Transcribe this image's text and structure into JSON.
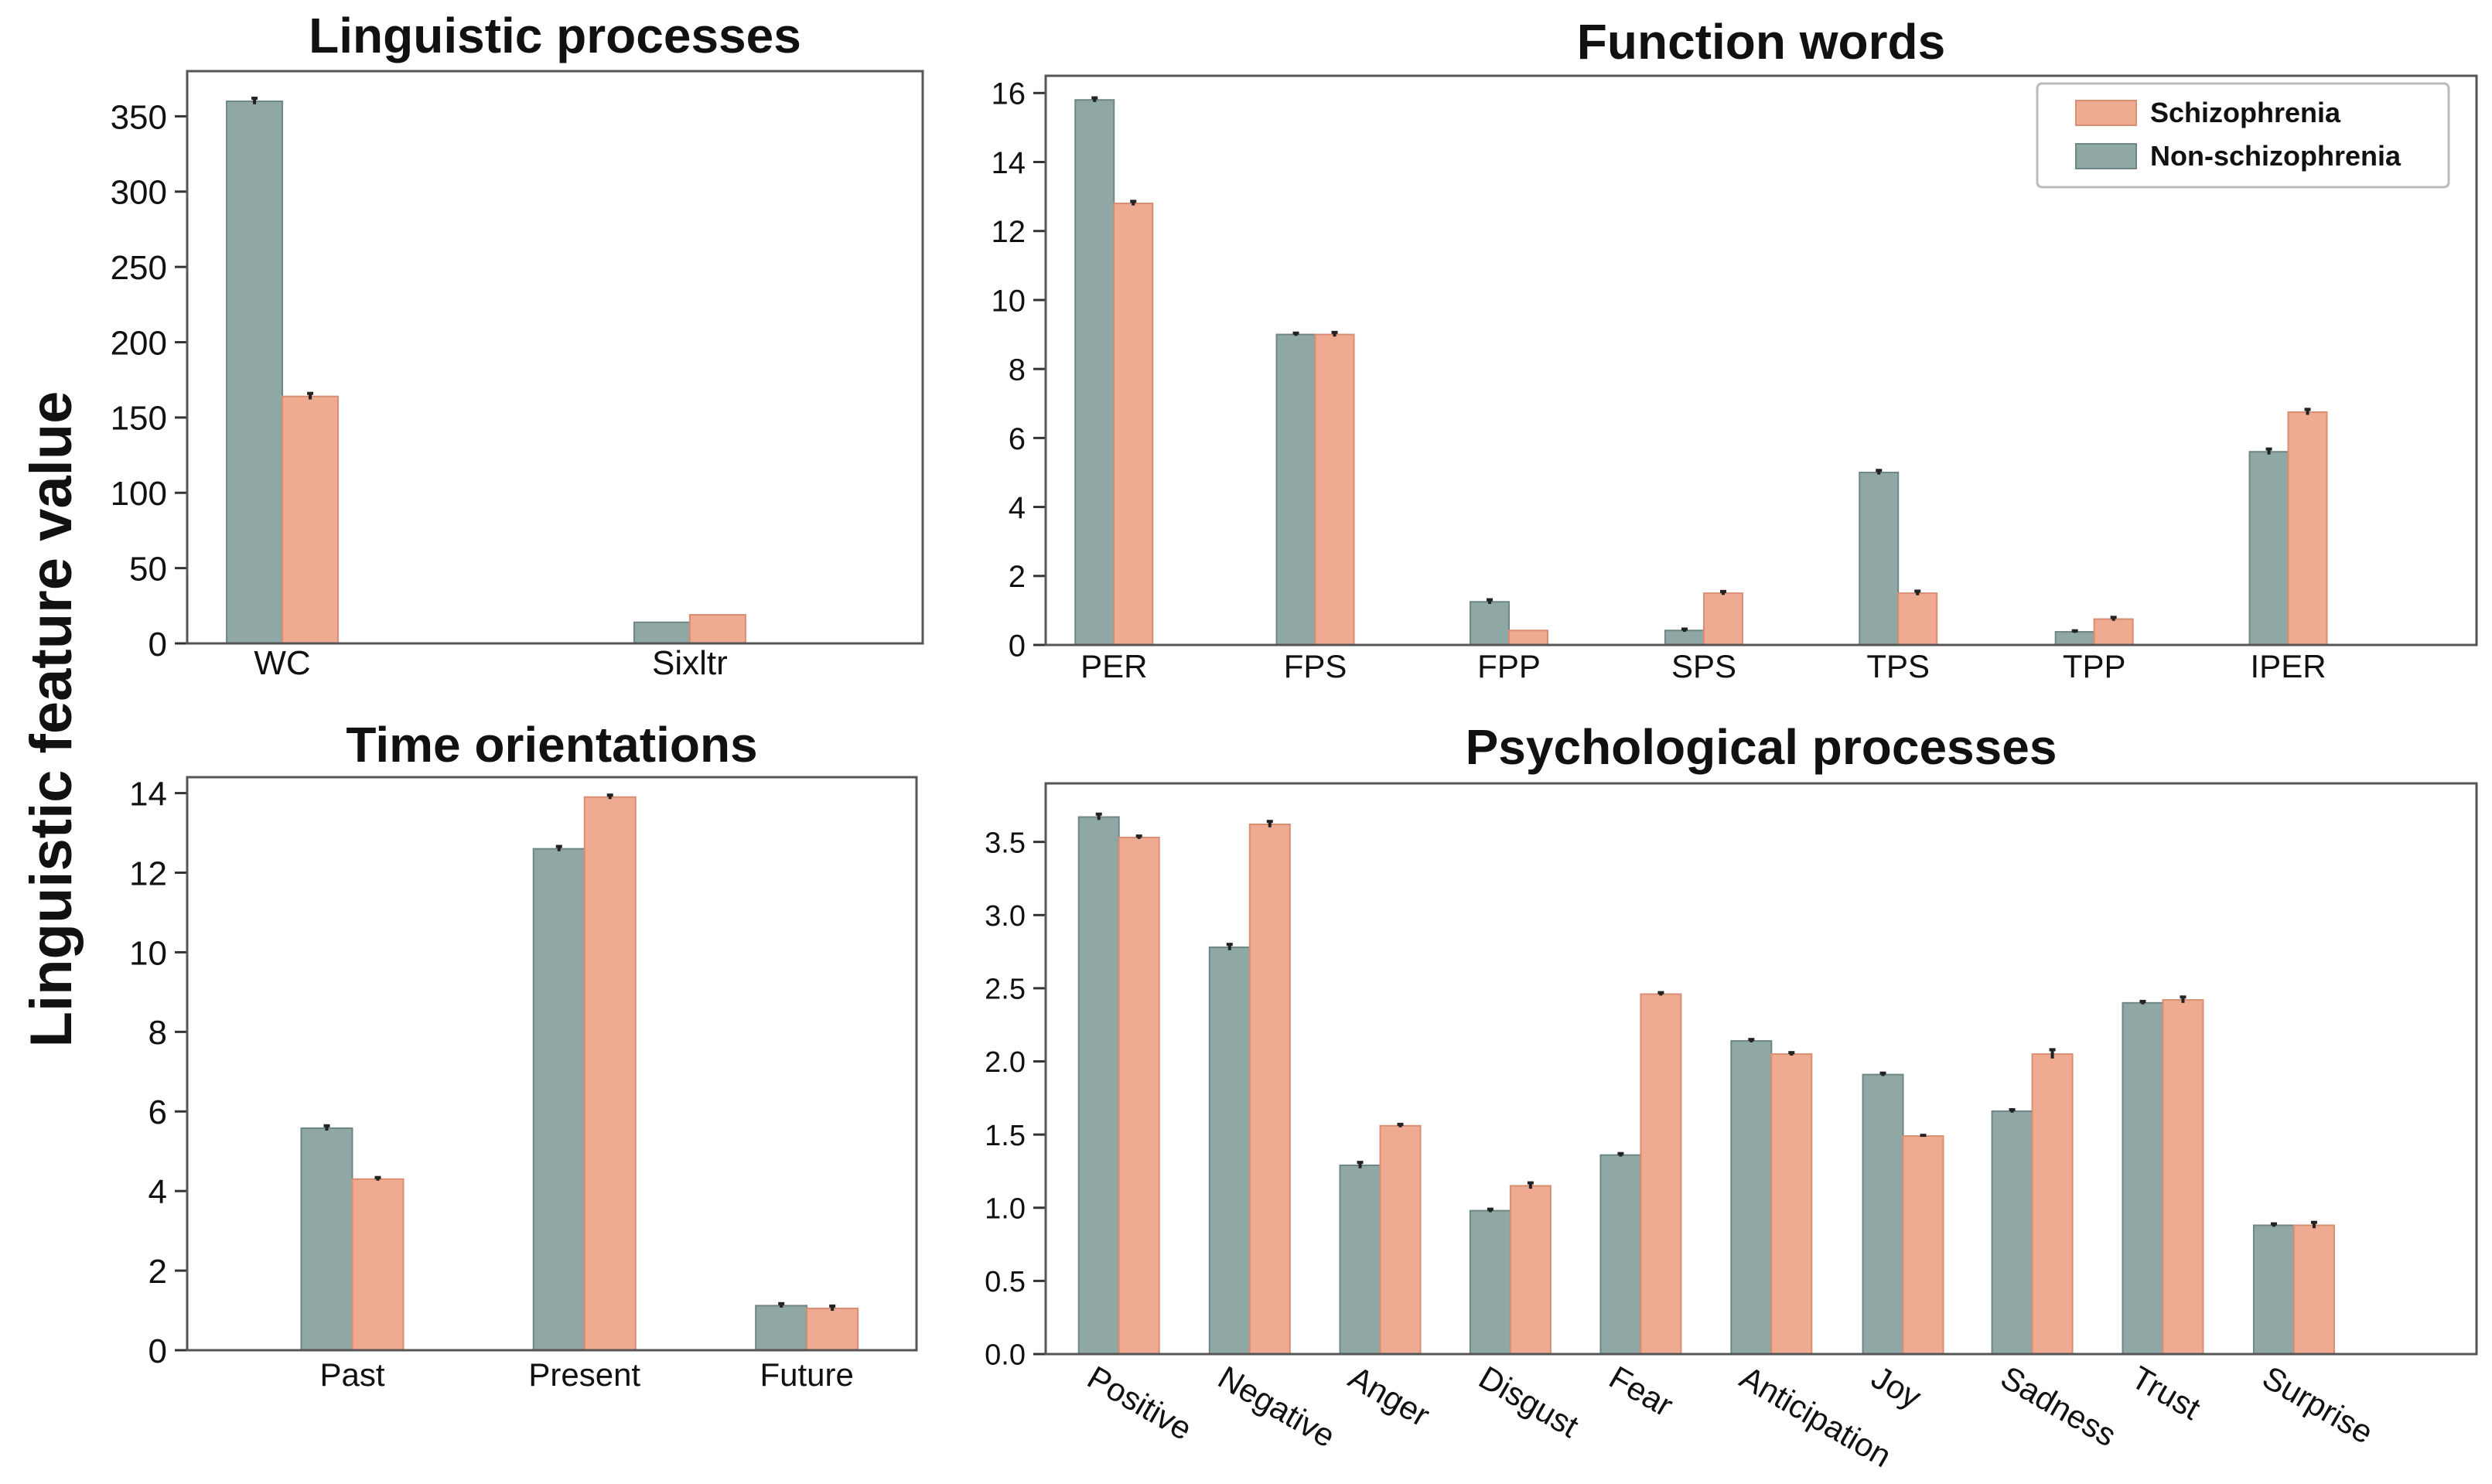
{
  "figure": {
    "ylabel": "Linguistic feature value",
    "legend": {
      "position": "top-right",
      "entries": [
        {
          "name": "Schizophrenia",
          "color": "#efab91"
        },
        {
          "name": "Non-schizophrenia",
          "color": "#8fa8a5"
        }
      ]
    }
  },
  "chart_data": [
    {
      "type": "bar",
      "title": "Linguistic processes",
      "categories": [
        "WC",
        "Sixltr"
      ],
      "series": [
        {
          "name": "Non-schizophrenia",
          "color": "#8fa8a5",
          "values": [
            360,
            14
          ],
          "errors": [
            2,
            0
          ]
        },
        {
          "name": "Schizophrenia",
          "color": "#efab91",
          "values": [
            164,
            19
          ],
          "errors": [
            2,
            0
          ]
        }
      ],
      "ylim": [
        0,
        380
      ],
      "yticks": [
        0,
        50,
        100,
        150,
        200,
        250,
        300,
        350
      ],
      "tick_labels": [
        "0",
        "50",
        "100",
        "150",
        "200",
        "250",
        "300",
        "350"
      ],
      "xlabel": "",
      "ylabel": ""
    },
    {
      "type": "bar",
      "title": "Function words",
      "categories": [
        "PER",
        "FPS",
        "FPP",
        "SPS",
        "TPS",
        "TPP",
        "IPER"
      ],
      "series": [
        {
          "name": "Non-schizophrenia",
          "color": "#8fa8a5",
          "values": [
            15.8,
            9.0,
            1.25,
            0.42,
            5.0,
            0.38,
            5.6
          ],
          "errors": [
            0.06,
            0.04,
            0.06,
            0.04,
            0.06,
            0.03,
            0.08
          ]
        },
        {
          "name": "Schizophrenia",
          "color": "#efab91",
          "values": [
            12.8,
            9.0,
            0.42,
            1.5,
            1.5,
            0.75,
            6.75
          ],
          "errors": [
            0.06,
            0.06,
            0.0,
            0.05,
            0.06,
            0.05,
            0.08
          ]
        }
      ],
      "ylim": [
        0,
        16.5
      ],
      "yticks": [
        0,
        2,
        4,
        6,
        8,
        10,
        12,
        14,
        16
      ],
      "tick_labels": [
        "0",
        "2",
        "4",
        "6",
        "8",
        "10",
        "12",
        "14",
        "16"
      ],
      "xlabel": "",
      "ylabel": ""
    },
    {
      "type": "bar",
      "title": "Time orientations",
      "categories": [
        "Past",
        "Present",
        "Future"
      ],
      "series": [
        {
          "name": "Non-schizophrenia",
          "color": "#8fa8a5",
          "values": [
            5.58,
            12.6,
            1.12
          ],
          "errors": [
            0.06,
            0.06,
            0.05
          ]
        },
        {
          "name": "Schizophrenia",
          "color": "#efab91",
          "values": [
            4.3,
            13.9,
            1.05
          ],
          "errors": [
            0.04,
            0.05,
            0.06
          ]
        }
      ],
      "ylim": [
        0,
        14.4
      ],
      "yticks": [
        0,
        2,
        4,
        6,
        8,
        10,
        12,
        14
      ],
      "tick_labels": [
        "0",
        "2",
        "4",
        "6",
        "8",
        "10",
        "12",
        "14"
      ],
      "xlabel": "",
      "ylabel": ""
    },
    {
      "type": "bar",
      "title": "Psychological processes",
      "categories": [
        "Positive",
        "Negative",
        "Anger",
        "Disgust",
        "Fear",
        "Anticipation",
        "Joy",
        "Sadness",
        "Trust",
        "Surprise"
      ],
      "series": [
        {
          "name": "Non-schizophrenia",
          "color": "#8fa8a5",
          "values": [
            3.67,
            2.78,
            1.29,
            0.98,
            1.36,
            2.14,
            1.91,
            1.66,
            2.4,
            0.88
          ],
          "errors": [
            0.02,
            0.02,
            0.02,
            0.01,
            0.01,
            0.01,
            0.01,
            0.01,
            0.01,
            0.01
          ]
        },
        {
          "name": "Schizophrenia",
          "color": "#efab91",
          "values": [
            3.53,
            3.62,
            1.56,
            1.15,
            2.46,
            2.05,
            1.49,
            2.05,
            2.42,
            0.88
          ],
          "errors": [
            0.01,
            0.02,
            0.01,
            0.02,
            0.01,
            0.01,
            0.005,
            0.03,
            0.02,
            0.02
          ]
        }
      ],
      "ylim": [
        0,
        3.9
      ],
      "yticks": [
        0,
        0.5,
        1,
        1.5,
        2,
        2.5,
        3,
        3.5
      ],
      "tick_labels": [
        "0.0",
        "0.5",
        "1.0",
        "1.5",
        "2.0",
        "2.5",
        "3.0",
        "3.5"
      ],
      "xlabel": "",
      "ylabel": ""
    }
  ]
}
